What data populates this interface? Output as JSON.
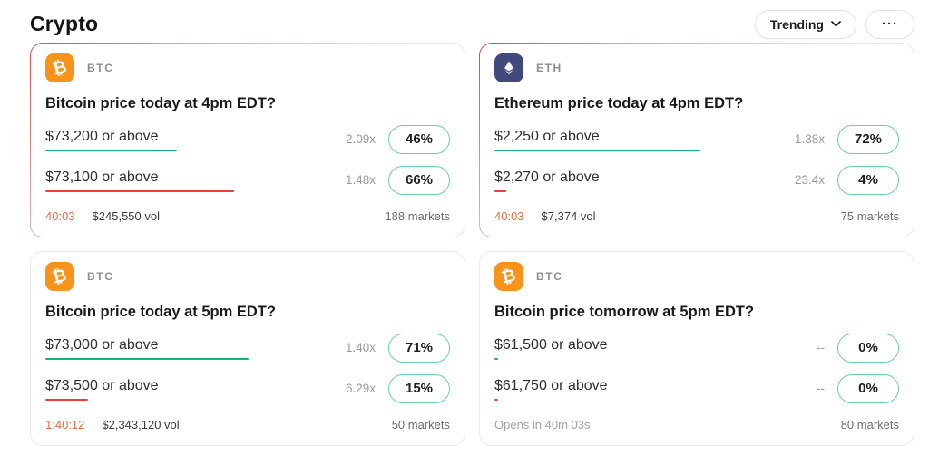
{
  "page_title": "Crypto",
  "toolbar": {
    "trending_label": "Trending",
    "more_label": "···"
  },
  "colors": {
    "accent_green": "#13b371",
    "pill_border": "#67d3a1",
    "accent_red": "#f03e3e",
    "timer_orange": "#e96a45",
    "btc_orange": "#f7931a",
    "eth_indigo": "#424a7d"
  },
  "icons": {
    "btc_glyph": "₿"
  },
  "cards": [
    {
      "ticker": "BTC",
      "title": "Bitcoin price today at 4pm EDT?",
      "closing_soon": true,
      "options": [
        {
          "label": "$73,200 or above",
          "multiplier": "2.09x",
          "percent": "46%",
          "pct": 46,
          "trend": "up"
        },
        {
          "label": "$73,100 or above",
          "multiplier": "1.48x",
          "percent": "66%",
          "pct": 66,
          "trend": "down"
        }
      ],
      "footer": {
        "timer": "40:03",
        "volume": "$245,550 vol",
        "markets": "188 markets"
      }
    },
    {
      "ticker": "ETH",
      "title": "Ethereum price today at 4pm EDT?",
      "closing_soon": true,
      "options": [
        {
          "label": "$2,250 or above",
          "multiplier": "1.38x",
          "percent": "72%",
          "pct": 72,
          "trend": "up"
        },
        {
          "label": "$2,270 or above",
          "multiplier": "23.4x",
          "percent": "4%",
          "pct": 4,
          "trend": "down"
        }
      ],
      "footer": {
        "timer": "40:03",
        "volume": "$7,374 vol",
        "markets": "75 markets"
      }
    },
    {
      "ticker": "BTC",
      "title": "Bitcoin price today at 5pm EDT?",
      "closing_soon": false,
      "options": [
        {
          "label": "$73,000 or above",
          "multiplier": "1.40x",
          "percent": "71%",
          "pct": 71,
          "trend": "up"
        },
        {
          "label": "$73,500 or above",
          "multiplier": "6.29x",
          "percent": "15%",
          "pct": 15,
          "trend": "down"
        }
      ],
      "footer": {
        "timer": "1:40:12",
        "volume": "$2,343,120 vol",
        "markets": "50 markets"
      }
    },
    {
      "ticker": "BTC",
      "title": "Bitcoin price tomorrow at 5pm EDT?",
      "closing_soon": false,
      "options": [
        {
          "label": "$61,500 or above",
          "multiplier": "--",
          "percent": "0%",
          "pct": 0,
          "trend": "up"
        },
        {
          "label": "$61,750 or above",
          "multiplier": "--",
          "percent": "0%",
          "pct": 0,
          "trend": "down"
        }
      ],
      "footer": {
        "status": "Opens in 40m 03s",
        "markets": "80 markets"
      }
    }
  ]
}
